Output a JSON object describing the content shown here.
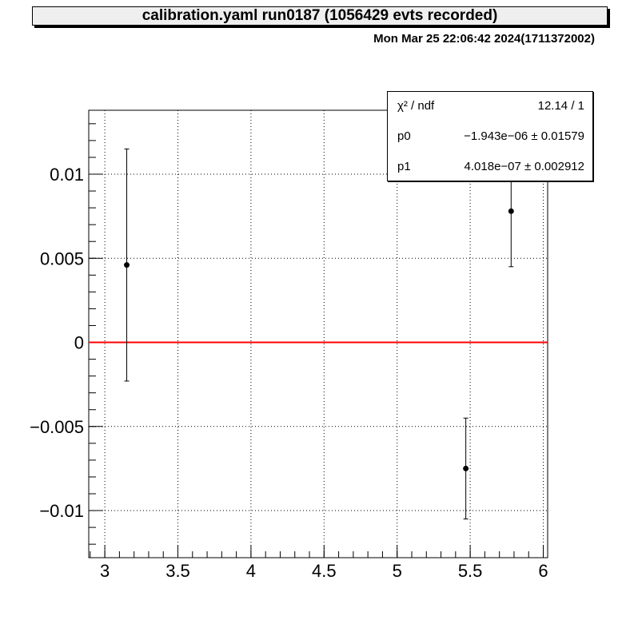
{
  "header": {
    "title": "calibration.yaml  run0187 (1056429 evts recorded)",
    "datetime": "Mon Mar 25 22:06:42 2024(1711372002)"
  },
  "stats": [
    {
      "name": "χ² / ndf",
      "value": "12.14 / 1"
    },
    {
      "name": "p0",
      "value": "−1.943e−06 ± 0.01579"
    },
    {
      "name": "p1",
      "value": "4.018e−07 ± 0.002912"
    }
  ],
  "colors": {
    "fit_line": "#ff0000",
    "points": "#000000"
  },
  "chart_data": {
    "type": "scatter",
    "title": "calibration.yaml  run0187 (1056429 evts recorded)",
    "xlim": [
      2.89,
      6.03
    ],
    "ylim": [
      -0.0128,
      0.0138
    ],
    "grid": true,
    "x_ticks": [
      3,
      3.5,
      4,
      4.5,
      5,
      5.5,
      6
    ],
    "x_tick_labels": [
      "3",
      "3.5",
      "4",
      "4.5",
      "5",
      "5.5",
      "6"
    ],
    "y_ticks": [
      -0.01,
      -0.005,
      0,
      0.005,
      0.01
    ],
    "y_tick_labels": [
      "−0.01",
      "−0.005",
      "0",
      "0.005",
      "0.01"
    ],
    "points": [
      {
        "x": 3.15,
        "y": 0.0046,
        "err": 0.0069
      },
      {
        "x": 5.47,
        "y": -0.0075,
        "err": 0.003
      },
      {
        "x": 5.78,
        "y": 0.0078,
        "err": 0.0033
      }
    ],
    "fit": {
      "x": [
        2.89,
        6.03
      ],
      "y": [
        0,
        0
      ]
    },
    "legend": "top-right"
  }
}
